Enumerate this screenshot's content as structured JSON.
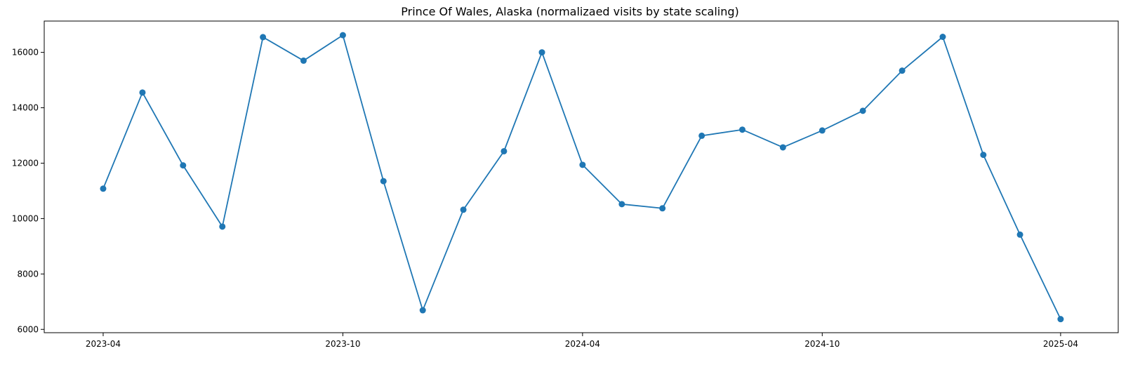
{
  "chart_data": {
    "type": "line",
    "title": "Prince Of Wales, Alaska (normalizaed visits by state scaling)",
    "xlabel": "",
    "ylabel": "",
    "x": [
      "2023-04-01",
      "2023-05-01",
      "2023-06-01",
      "2023-07-01",
      "2023-08-01",
      "2023-09-01",
      "2023-10-01",
      "2023-11-01",
      "2023-12-01",
      "2024-01-01",
      "2024-02-01",
      "2024-03-01",
      "2024-04-01",
      "2024-05-01",
      "2024-06-01",
      "2024-07-01",
      "2024-08-01",
      "2024-09-01",
      "2024-10-01",
      "2024-11-01",
      "2024-12-01",
      "2025-01-01",
      "2025-02-01",
      "2025-03-01",
      "2025-04-01"
    ],
    "series": [
      {
        "values": [
          11080,
          14550,
          11920,
          9710,
          16550,
          15700,
          16620,
          11350,
          6690,
          10320,
          12430,
          16000,
          11940,
          10520,
          10370,
          12990,
          13210,
          12570,
          13180,
          13890,
          15340,
          16560,
          12300,
          9420,
          6370
        ]
      }
    ],
    "xlim": [
      "2023-02-15",
      "2025-05-15"
    ],
    "ylim": [
      5880,
      17130
    ],
    "x_ticks": [
      {
        "date": "2023-04-01",
        "label": "2023-04"
      },
      {
        "date": "2023-10-01",
        "label": "2023-10"
      },
      {
        "date": "2024-04-01",
        "label": "2024-04"
      },
      {
        "date": "2024-10-01",
        "label": "2024-10"
      },
      {
        "date": "2025-04-01",
        "label": "2025-04"
      }
    ],
    "y_ticks": [
      {
        "value": 6000,
        "label": "6000"
      },
      {
        "value": 8000,
        "label": "8000"
      },
      {
        "value": 10000,
        "label": "10000"
      },
      {
        "value": 12000,
        "label": "12000"
      },
      {
        "value": 14000,
        "label": "14000"
      },
      {
        "value": 16000,
        "label": "16000"
      }
    ],
    "grid": false,
    "legend": "none",
    "line_color": "#1f77b4",
    "marker": "circle"
  }
}
